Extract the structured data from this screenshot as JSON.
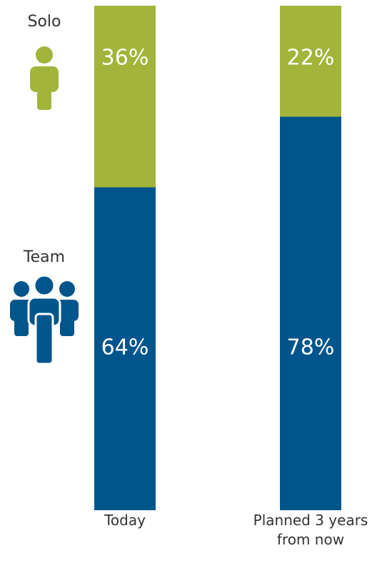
{
  "chart_data": {
    "type": "stacked_bar",
    "categories": [
      "Today",
      "Planned 3 years from now"
    ],
    "series": [
      {
        "name": "Team",
        "color": "#00558c",
        "values": [
          64,
          78
        ],
        "value_labels": [
          "64%",
          "78%"
        ]
      },
      {
        "name": "Solo",
        "color": "#a2b43a",
        "values": [
          36,
          22
        ],
        "value_labels": [
          "36%",
          "22%"
        ]
      }
    ],
    "ylim": [
      0,
      100
    ]
  }
}
